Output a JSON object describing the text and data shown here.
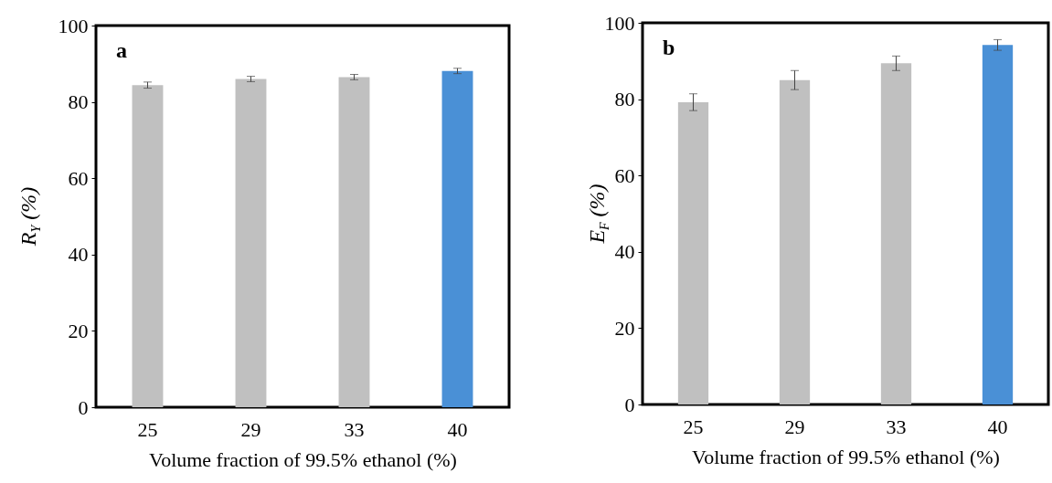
{
  "chart_data": [
    {
      "type": "bar",
      "categories": [
        "25",
        "29",
        "33",
        "40"
      ],
      "values": [
        84.4,
        86.0,
        86.5,
        88.1
      ],
      "errors": [
        0.8,
        0.7,
        0.7,
        0.7
      ],
      "colors": [
        "#c0c0c0",
        "#c0c0c0",
        "#c0c0c0",
        "#4a90d6"
      ],
      "ylim": [
        0,
        100
      ],
      "yticks": [
        0,
        20,
        40,
        60,
        80,
        100
      ],
      "xlabel": "Volume fraction of 99.5% ethanol (%)",
      "ylabel": "R$_{Y}$ (%)",
      "annotations": [
        "a"
      ]
    },
    {
      "type": "bar",
      "categories": [
        "25",
        "29",
        "33",
        "40"
      ],
      "values": [
        79.2,
        85.0,
        89.4,
        94.2
      ],
      "errors": [
        2.2,
        2.5,
        1.9,
        1.4
      ],
      "colors": [
        "#c0c0c0",
        "#c0c0c0",
        "#c0c0c0",
        "#4a90d6"
      ],
      "ylim": [
        0,
        100
      ],
      "yticks": [
        0,
        20,
        40,
        60,
        80,
        100
      ],
      "xlabel": "Volume fraction of 99.5% ethanol (%)",
      "ylabel": "E$_{F}$ (%)",
      "annotations": [
        "b"
      ]
    }
  ]
}
